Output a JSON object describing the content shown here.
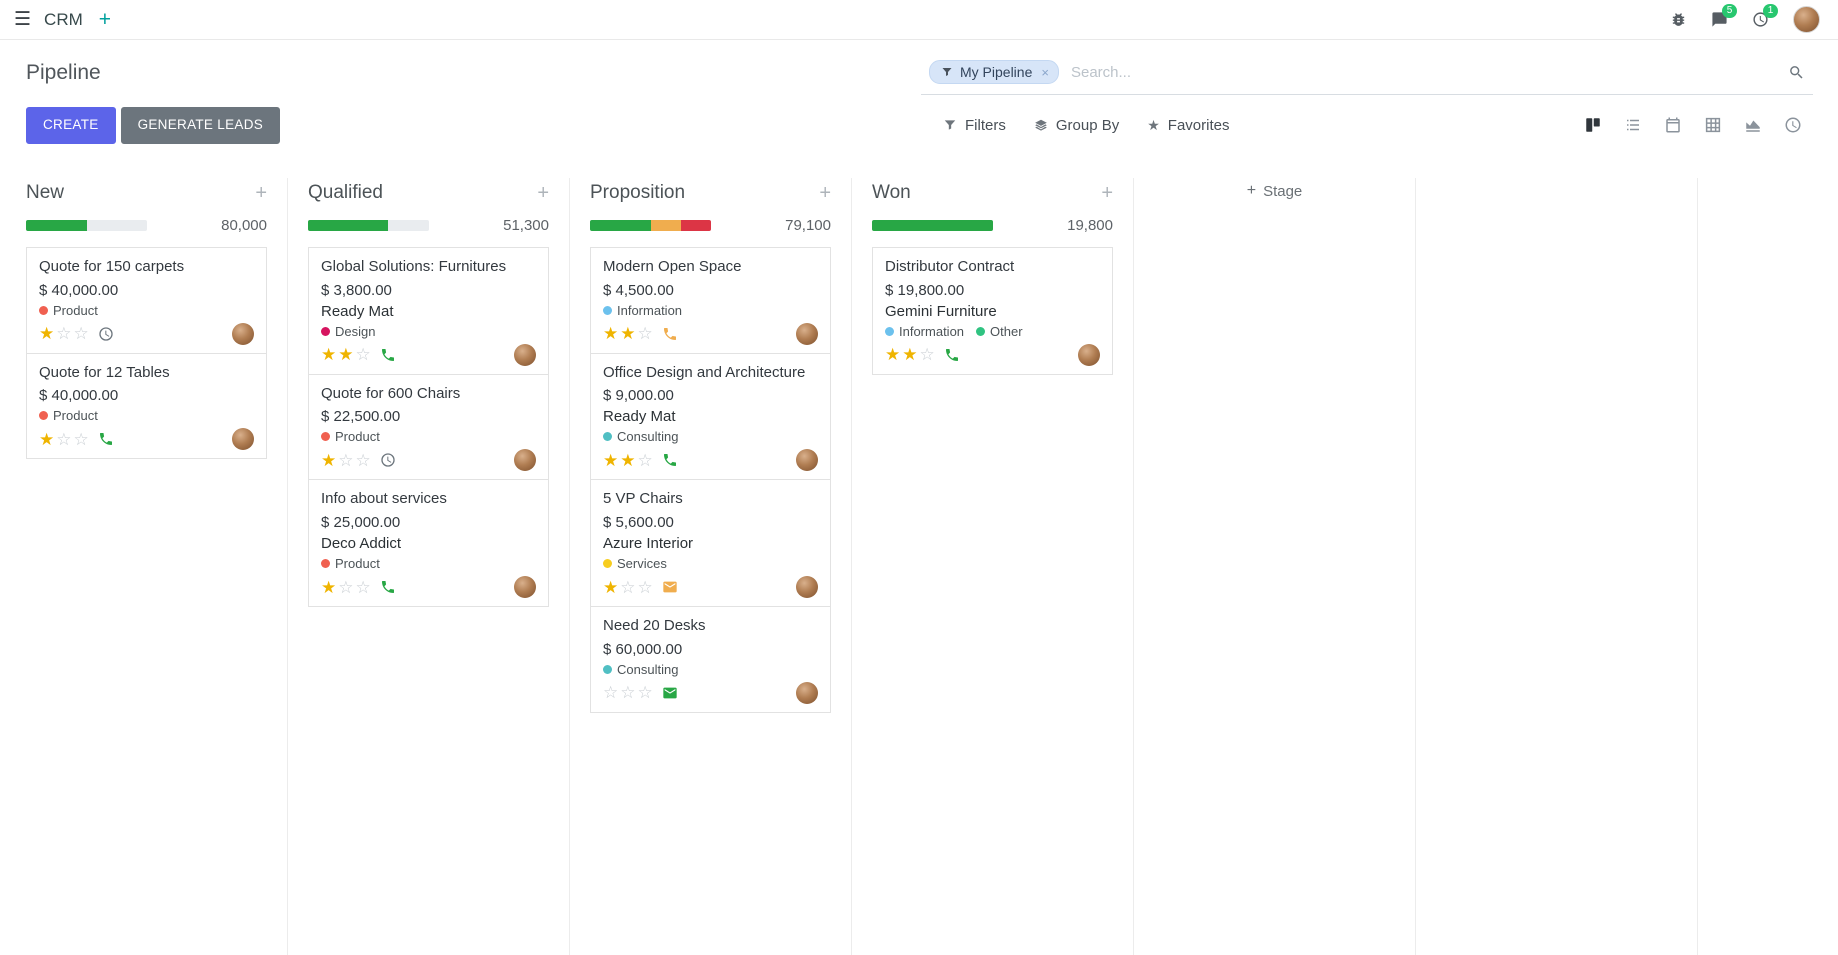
{
  "colors": {
    "primary": "#5c64e9",
    "secondary": "#6c757d",
    "success": "#28a745",
    "warning": "#f0ad4e",
    "danger": "#dc3545",
    "star": "#efb400",
    "badge": "#28c76f",
    "accent-teal": "#00a09d"
  },
  "icons": {
    "hamburger": "☰",
    "plus": "+",
    "star": "★",
    "close": "×"
  },
  "navbar": {
    "app_name": "CRM",
    "systray": {
      "messages_badge": "5",
      "activities_badge": "1"
    }
  },
  "control_panel": {
    "title": "Pipeline",
    "buttons": {
      "create": "CREATE",
      "generate_leads": "GENERATE LEADS"
    },
    "search": {
      "facet_label": "My Pipeline",
      "placeholder": "Search..."
    },
    "filter_menus": {
      "filters": "Filters",
      "group_by": "Group By",
      "favorites": "Favorites"
    },
    "view_switcher": {
      "active": "kanban",
      "options": [
        "kanban",
        "list",
        "calendar",
        "pivot",
        "graph",
        "activity"
      ]
    }
  },
  "kanban": {
    "add_stage": "Stage",
    "columns": [
      {
        "title": "New",
        "total": "80,000",
        "progress": [
          {
            "color": "#28a745",
            "pct": 50
          }
        ],
        "cards": [
          {
            "title": "Quote for 150 carpets",
            "amount": "$ 40,000.00",
            "tags": [
              {
                "label": "Product",
                "color": "#f06050"
              }
            ],
            "stars": 1,
            "activity": {
              "icon": "clock-icon",
              "color": "#6c757d"
            }
          },
          {
            "title": "Quote for 12 Tables",
            "amount": "$ 40,000.00",
            "tags": [
              {
                "label": "Product",
                "color": "#f06050"
              }
            ],
            "stars": 1,
            "activity": {
              "icon": "phone-icon",
              "color": "#28a745"
            }
          }
        ]
      },
      {
        "title": "Qualified",
        "total": "51,300",
        "progress": [
          {
            "color": "#28a745",
            "pct": 66
          }
        ],
        "cards": [
          {
            "title": "Global Solutions: Furnitures",
            "amount": "$ 3,800.00",
            "partner": "Ready Mat",
            "tags": [
              {
                "label": "Design",
                "color": "#d6145f"
              }
            ],
            "stars": 2,
            "activity": {
              "icon": "phone-icon",
              "color": "#28a745"
            }
          },
          {
            "title": "Quote for 600 Chairs",
            "amount": "$ 22,500.00",
            "tags": [
              {
                "label": "Product",
                "color": "#f06050"
              }
            ],
            "stars": 1,
            "activity": {
              "icon": "clock-icon",
              "color": "#6c757d"
            }
          },
          {
            "title": "Info about services",
            "amount": "$ 25,000.00",
            "partner": "Deco Addict",
            "tags": [
              {
                "label": "Product",
                "color": "#f06050"
              }
            ],
            "stars": 1,
            "activity": {
              "icon": "phone-icon",
              "color": "#28a745"
            }
          }
        ]
      },
      {
        "title": "Proposition",
        "total": "79,100",
        "progress": [
          {
            "color": "#28a745",
            "pct": 50
          },
          {
            "color": "#f0ad4e",
            "pct": 25
          },
          {
            "color": "#dc3545",
            "pct": 25
          }
        ],
        "cards": [
          {
            "title": "Modern Open Space",
            "amount": "$ 4,500.00",
            "tags": [
              {
                "label": "Information",
                "color": "#6cc1ed"
              }
            ],
            "stars": 2,
            "activity": {
              "icon": "phone-icon",
              "color": "#f0ad4e"
            }
          },
          {
            "title": "Office Design and Architecture",
            "amount": "$ 9,000.00",
            "partner": "Ready Mat",
            "tags": [
              {
                "label": "Consulting",
                "color": "#50bfc3"
              }
            ],
            "stars": 2,
            "activity": {
              "icon": "phone-icon",
              "color": "#28a745"
            }
          },
          {
            "title": "5 VP Chairs",
            "amount": "$ 5,600.00",
            "partner": "Azure Interior",
            "tags": [
              {
                "label": "Services",
                "color": "#f7cd1f"
              }
            ],
            "stars": 1,
            "activity": {
              "icon": "envelope-icon",
              "color": "#f0ad4e"
            }
          },
          {
            "title": "Need 20 Desks",
            "amount": "$ 60,000.00",
            "tags": [
              {
                "label": "Consulting",
                "color": "#50bfc3"
              }
            ],
            "stars": 0,
            "activity": {
              "icon": "envelope-icon",
              "color": "#28a745"
            }
          }
        ]
      },
      {
        "title": "Won",
        "total": "19,800",
        "progress": [
          {
            "color": "#28a745",
            "pct": 100
          }
        ],
        "cards": [
          {
            "title": "Distributor Contract",
            "amount": "$ 19,800.00",
            "partner": "Gemini Furniture",
            "tags": [
              {
                "label": "Information",
                "color": "#6cc1ed"
              },
              {
                "label": "Other",
                "color": "#30c381"
              }
            ],
            "stars": 2,
            "activity": {
              "icon": "phone-icon",
              "color": "#28a745"
            }
          }
        ]
      }
    ]
  }
}
